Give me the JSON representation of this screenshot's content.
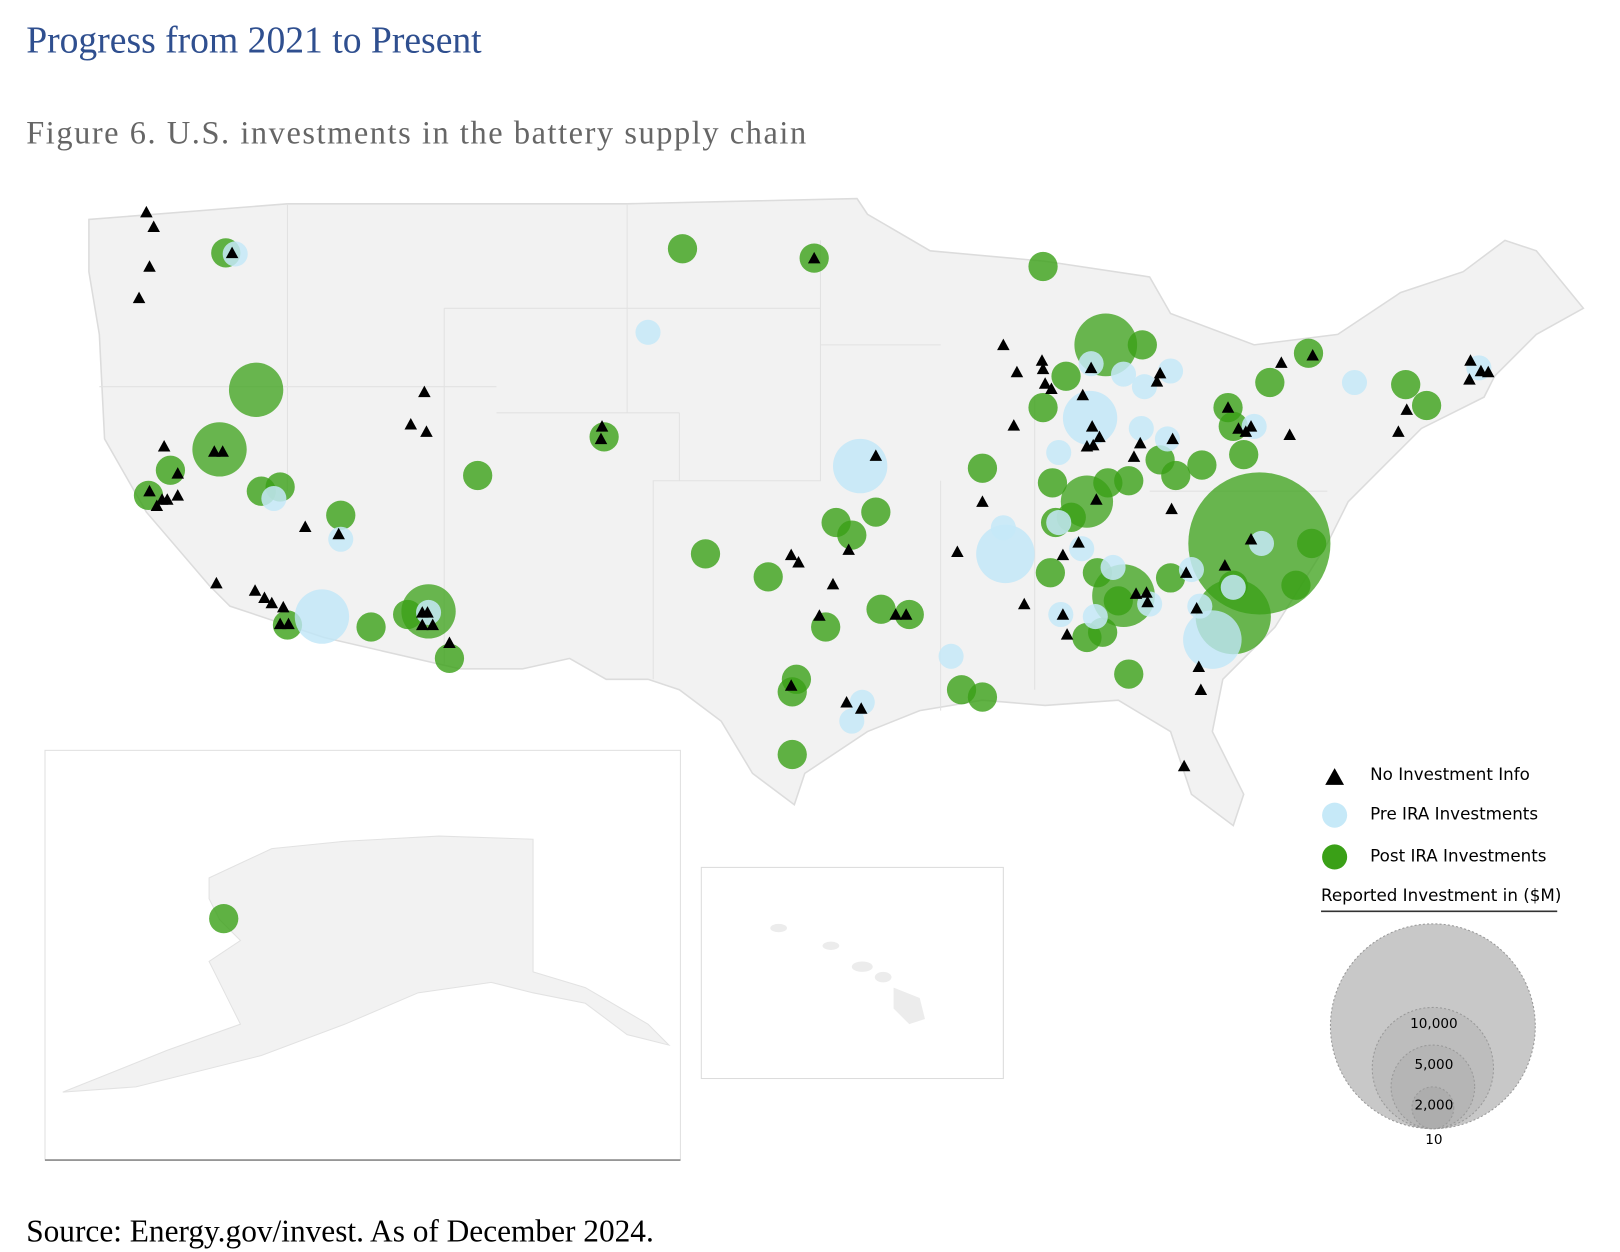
{
  "header": {
    "title": "Progress from 2021 to Present",
    "caption": "Figure 6. U.S. investments in the battery supply chain"
  },
  "legend": {
    "items": [
      "No Investment Info",
      "Pre IRA Investments",
      "Post IRA Investments"
    ],
    "size_title": "Reported Investment in ($M)",
    "size_labels": [
      "10,000",
      "5,000",
      "2,000",
      "10"
    ]
  },
  "source": "Source: Energy.gov/invest. As of December 2024."
}
